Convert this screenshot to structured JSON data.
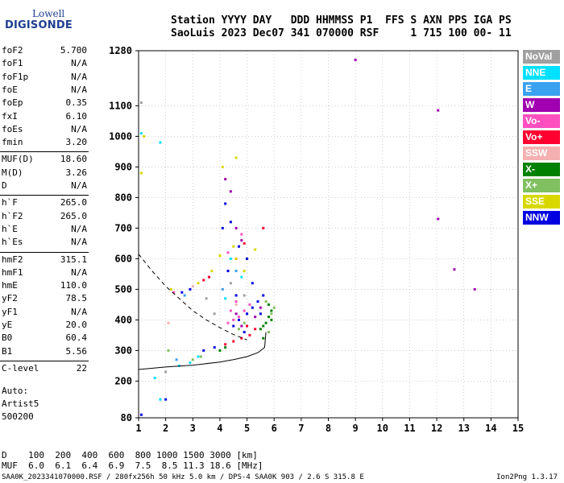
{
  "logo": {
    "line1": "Lowell",
    "line2": "DIGISONDE"
  },
  "header": {
    "line1": "Station YYYY DAY   DDD HHMMSS P1  FFS S AXN PPS IGA PS",
    "line2": "SaoLuis 2023 Dec07 341 070000 RSF     1 715 100 00- 11"
  },
  "params": [
    {
      "k": "foF2",
      "v": "5.700"
    },
    {
      "k": "foF1",
      "v": "N/A"
    },
    {
      "k": "foF1p",
      "v": "N/A"
    },
    {
      "k": "foE",
      "v": "N/A"
    },
    {
      "k": "foEp",
      "v": "0.35"
    },
    {
      "k": "fxI",
      "v": "6.10"
    },
    {
      "k": "foEs",
      "v": "N/A"
    },
    {
      "k": "fmin",
      "v": "3.20"
    },
    {
      "k": "MUF(D)",
      "v": "18.60"
    },
    {
      "k": "M(D)",
      "v": "3.26"
    },
    {
      "k": "D",
      "v": "N/A"
    },
    {
      "k": "h`F",
      "v": "265.0"
    },
    {
      "k": "h`F2",
      "v": "265.0"
    },
    {
      "k": "h`E",
      "v": "N/A"
    },
    {
      "k": "h`Es",
      "v": "N/A"
    },
    {
      "k": "hmF2",
      "v": "315.1"
    },
    {
      "k": "hmF1",
      "v": "N/A"
    },
    {
      "k": "hmE",
      "v": "110.0"
    },
    {
      "k": "yF2",
      "v": "78.5"
    },
    {
      "k": "yF1",
      "v": "N/A"
    },
    {
      "k": "yE",
      "v": "20.0"
    },
    {
      "k": "B0",
      "v": "60.4"
    },
    {
      "k": "B1",
      "v": "5.56"
    },
    {
      "k": "C-level",
      "v": "22"
    }
  ],
  "extra": {
    "l1": "Auto:",
    "l2": "Artist5",
    "l3": "500200"
  },
  "muf": {
    "dline": "D    100  200  400  600  800 1000 1500 3000 [km]",
    "mline": "MUF  6.0  6.1  6.4  6.9  7.5  8.5 11.3 18.6 [MHz]"
  },
  "footer": "SAA0K_2023341070000.RSF / 280fx256h 50 kHz 5.0 km / DPS-4 SAA0K 903 / 2.6 S 315.8 E",
  "version": "Ion2Png 1.3.17",
  "legend": [
    {
      "label": "NoVal",
      "color": "#a0a0a0"
    },
    {
      "label": "NNE",
      "color": "#00e0ff"
    },
    {
      "label": "E",
      "color": "#3aa0f0"
    },
    {
      "label": "W",
      "color": "#a000b0"
    },
    {
      "label": "Vo-",
      "color": "#ff50c0"
    },
    {
      "label": "Vo+",
      "color": "#ff0030"
    },
    {
      "label": "SSW",
      "color": "#f4b0b0"
    },
    {
      "label": "X-",
      "color": "#008000"
    },
    {
      "label": "X+",
      "color": "#80c060"
    },
    {
      "label": "SSE",
      "color": "#d8d800"
    },
    {
      "label": "NNW",
      "color": "#0000e0"
    }
  ],
  "chart_data": {
    "type": "scatter",
    "xlabel": "",
    "ylabel": "",
    "xlim": [
      1,
      15
    ],
    "ylim": [
      80,
      1280
    ],
    "xticks": [
      1,
      2,
      3,
      4,
      5,
      6,
      7,
      8,
      9,
      10,
      11,
      12,
      13,
      14,
      15
    ],
    "yticks": [
      80,
      200,
      300,
      400,
      500,
      600,
      700,
      800,
      900,
      1000,
      1100,
      1280
    ],
    "grid": "dotted",
    "series": [
      {
        "color": "#a000b0",
        "points": [
          [
            4.2,
            860
          ],
          [
            4.4,
            820
          ],
          [
            4.6,
            700
          ],
          [
            4.8,
            660
          ],
          [
            9.0,
            1250
          ],
          [
            12.05,
            1085
          ],
          [
            12.05,
            730
          ],
          [
            12.65,
            565
          ],
          [
            13.4,
            500
          ],
          [
            5.5,
            440
          ],
          [
            5.3,
            410
          ],
          [
            4.8,
            380
          ],
          [
            4.6,
            420
          ]
        ]
      },
      {
        "color": "#0000e0",
        "points": [
          [
            4.5,
            380
          ],
          [
            4.7,
            400
          ],
          [
            5.0,
            420
          ],
          [
            5.2,
            440
          ],
          [
            5.4,
            460
          ],
          [
            5.6,
            480
          ],
          [
            5.5,
            420
          ],
          [
            4.9,
            360
          ],
          [
            4.6,
            480
          ],
          [
            4.3,
            560
          ],
          [
            5.0,
            600
          ],
          [
            4.7,
            640
          ],
          [
            4.4,
            720
          ],
          [
            4.2,
            780
          ],
          [
            4.1,
            700
          ],
          [
            5.2,
            520
          ],
          [
            3.4,
            300
          ],
          [
            3.8,
            310
          ],
          [
            2.6,
            490
          ],
          [
            2.9,
            500
          ],
          [
            2.0,
            140
          ],
          [
            1.1,
            90
          ]
        ]
      },
      {
        "color": "#ff0030",
        "points": [
          [
            4.2,
            320
          ],
          [
            4.5,
            330
          ],
          [
            4.8,
            340
          ],
          [
            5.1,
            350
          ],
          [
            5.3,
            370
          ],
          [
            5.0,
            380
          ],
          [
            4.6,
            600
          ],
          [
            4.9,
            650
          ],
          [
            5.6,
            700
          ],
          [
            3.4,
            530
          ],
          [
            3.6,
            540
          ]
        ]
      },
      {
        "color": "#ff50c0",
        "points": [
          [
            4.3,
            390
          ],
          [
            4.5,
            400
          ],
          [
            4.7,
            410
          ],
          [
            4.9,
            430
          ],
          [
            5.1,
            450
          ],
          [
            4.4,
            430
          ],
          [
            4.6,
            460
          ],
          [
            4.8,
            680
          ],
          [
            4.3,
            620
          ],
          [
            2.3,
            490
          ]
        ]
      },
      {
        "color": "#008000",
        "points": [
          [
            5.7,
            390
          ],
          [
            5.8,
            410
          ],
          [
            5.9,
            430
          ],
          [
            5.6,
            380
          ],
          [
            5.8,
            450
          ],
          [
            5.5,
            370
          ],
          [
            5.9,
            400
          ],
          [
            5.6,
            340
          ],
          [
            4.0,
            300
          ],
          [
            4.2,
            310
          ]
        ]
      },
      {
        "color": "#80c060",
        "points": [
          [
            5.9,
            420
          ],
          [
            6.0,
            440
          ],
          [
            5.7,
            460
          ],
          [
            5.8,
            360
          ],
          [
            4.7,
            370
          ],
          [
            4.9,
            390
          ],
          [
            3.0,
            270
          ],
          [
            3.3,
            280
          ],
          [
            2.1,
            300
          ]
        ]
      },
      {
        "color": "#d8d800",
        "points": [
          [
            4.5,
            640
          ],
          [
            4.6,
            600
          ],
          [
            4.9,
            560
          ],
          [
            5.3,
            630
          ],
          [
            4.0,
            610
          ],
          [
            3.7,
            560
          ],
          [
            3.2,
            520
          ],
          [
            2.2,
            500
          ],
          [
            1.2,
            1000
          ],
          [
            1.1,
            880
          ],
          [
            4.1,
            900
          ],
          [
            4.6,
            930
          ]
        ]
      },
      {
        "color": "#00e0ff",
        "points": [
          [
            4.4,
            600
          ],
          [
            4.8,
            540
          ],
          [
            4.2,
            470
          ],
          [
            2.9,
            260
          ],
          [
            2.5,
            250
          ],
          [
            3.2,
            280
          ],
          [
            1.1,
            1010
          ],
          [
            1.8,
            980
          ],
          [
            1.6,
            210
          ],
          [
            1.8,
            140
          ]
        ]
      },
      {
        "color": "#3aa0f0",
        "points": [
          [
            4.1,
            500
          ],
          [
            4.6,
            560
          ],
          [
            2.7,
            480
          ],
          [
            2.4,
            270
          ]
        ]
      },
      {
        "color": "#a0a0a0",
        "points": [
          [
            4.4,
            520
          ],
          [
            3.8,
            420
          ],
          [
            3.5,
            470
          ],
          [
            4.9,
            480
          ],
          [
            2.0,
            230
          ],
          [
            1.1,
            1110
          ]
        ]
      },
      {
        "color": "#f4b0b0",
        "points": [
          [
            4.6,
            450
          ],
          [
            3.0,
            510
          ],
          [
            2.1,
            390
          ]
        ]
      }
    ],
    "lines": [
      {
        "name": "",
        "style": "solid",
        "points": [
          [
            1.0,
            238
          ],
          [
            2.0,
            246
          ],
          [
            3.0,
            252
          ],
          [
            4.0,
            262
          ],
          [
            4.5,
            270
          ],
          [
            5.0,
            280
          ],
          [
            5.4,
            293
          ],
          [
            5.65,
            310
          ],
          [
            5.7,
            360
          ]
        ]
      },
      {
        "name": "",
        "style": "dashed",
        "points": [
          [
            1.0,
            615
          ],
          [
            1.5,
            560
          ],
          [
            2.0,
            510
          ],
          [
            2.5,
            470
          ],
          [
            3.0,
            430
          ],
          [
            3.5,
            400
          ],
          [
            4.0,
            375
          ],
          [
            4.5,
            352
          ],
          [
            5.0,
            335
          ]
        ]
      }
    ]
  }
}
